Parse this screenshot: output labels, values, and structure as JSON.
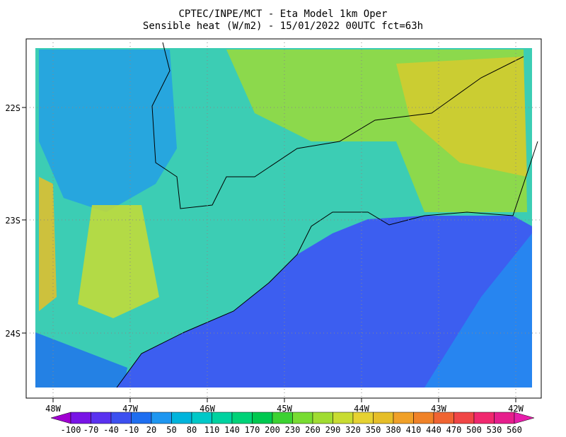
{
  "header": {
    "title": "CPTEC/INPE/MCT -  Eta Model 1km Oper",
    "subtitle": "Sensible heat (W/m2) - 15/01/2022 00UTC fct=63h"
  },
  "map": {
    "lat_labels": [
      "22S",
      "23S",
      "24S"
    ],
    "lon_labels": [
      "48W",
      "47W",
      "46W",
      "45W",
      "44W",
      "43W",
      "42W"
    ]
  },
  "colorbar": {
    "labels": [
      -100,
      -70,
      -40,
      -10,
      20,
      50,
      80,
      110,
      140,
      170,
      200,
      230,
      260,
      290,
      320,
      350,
      380,
      410,
      440,
      470,
      500,
      530,
      560
    ],
    "colors": [
      "#a000d2",
      "#7814e6",
      "#5a32f0",
      "#3c50f0",
      "#1e6ef0",
      "#1e96f0",
      "#00b4dc",
      "#00c8c8",
      "#00d2a0",
      "#00d278",
      "#00c850",
      "#3cd232",
      "#78dc32",
      "#a0dc32",
      "#c8dc32",
      "#e6d232",
      "#e6be28",
      "#f0a028",
      "#f08228",
      "#f06432",
      "#f04646",
      "#f0286e",
      "#e61e8c",
      "#e61eaa"
    ]
  }
}
